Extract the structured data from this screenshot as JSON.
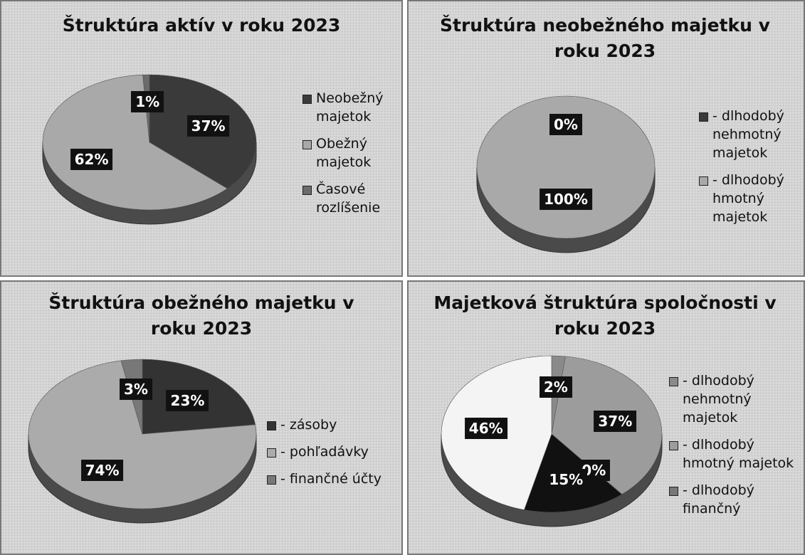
{
  "chart_data": [
    {
      "type": "pie",
      "title": "Štruktúra aktív v roku 2023",
      "categories": [
        "Neobežný majetok",
        "Obežný majetok",
        "Časové rozlíšenie"
      ],
      "values": [
        37,
        62,
        1
      ],
      "value_labels": [
        "37%",
        "62%",
        "1%"
      ],
      "colors": [
        "#3a3a3a",
        "#a9a9a9",
        "#6b6b6b"
      ]
    },
    {
      "type": "pie",
      "title": "Štruktúra neobežného majetku v roku 2023",
      "categories": [
        "- dlhodobý nehmotný majetok",
        "- dlhodobý hmotný majetok"
      ],
      "values": [
        0,
        100
      ],
      "value_labels": [
        "0%",
        "100%"
      ],
      "colors": [
        "#3a3a3a",
        "#a9a9a9"
      ]
    },
    {
      "type": "pie",
      "title": "Štruktúra obežného majetku v roku 2023",
      "categories": [
        "- zásoby",
        "- pohľadávky",
        "- finančné účty"
      ],
      "values": [
        23,
        74,
        3
      ],
      "value_labels": [
        "23%",
        "74%",
        "3%"
      ],
      "colors": [
        "#333333",
        "#ababab",
        "#787878"
      ]
    },
    {
      "type": "pie",
      "title": "Majetková štruktúra spoločnosti v roku 2023",
      "categories": [
        "- dlhodobý nehmotný majetok",
        "- dlhodobý hmotný majetok",
        "- dlhodobý finančný",
        null,
        null
      ],
      "values": [
        2,
        37,
        0,
        15,
        46
      ],
      "value_labels": [
        "2%",
        "37%",
        "0%",
        "15%",
        "46%"
      ],
      "colors": [
        "#8a8a8a",
        "#9c9c9c",
        "#777777",
        "#111111",
        "#f4f4f4"
      ]
    }
  ]
}
